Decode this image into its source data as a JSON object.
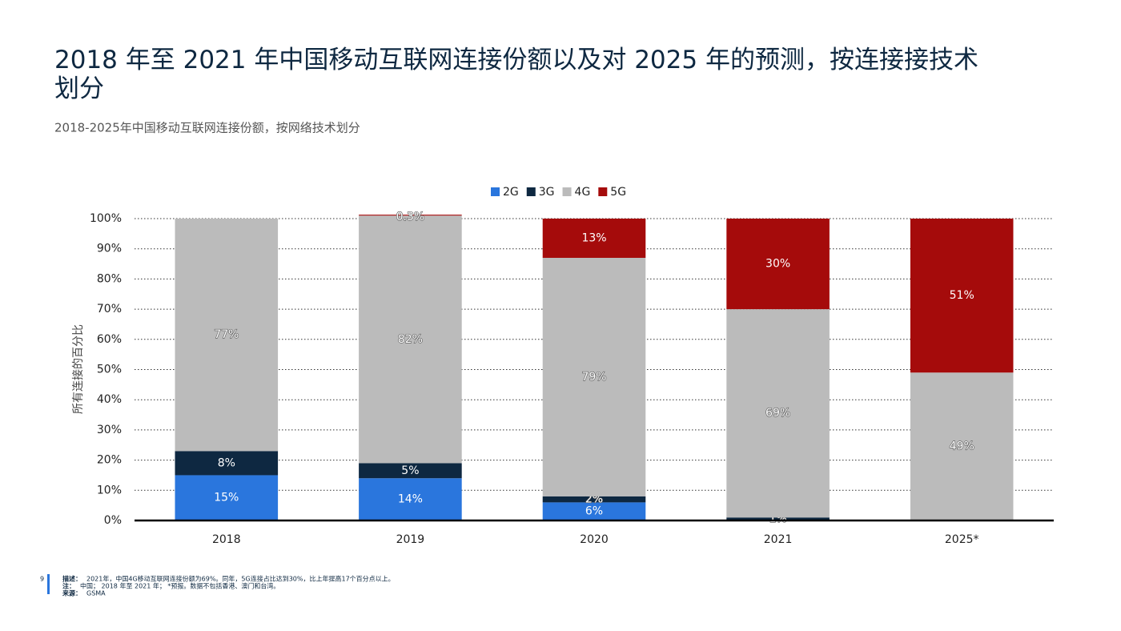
{
  "chart_data": {
    "type": "stacked_bar",
    "title": "2018 年至 2021 年中国移动互联网连接份额以及对 2025 年的预测，按连接接技术划分",
    "subtitle": "2018-2025年中国移动互联网连接份额，按网络技术划分",
    "y_label": "所有连接的百分比",
    "categories": [
      "2018",
      "2019",
      "2020",
      "2021",
      "2025*"
    ],
    "series": [
      {
        "name": "2G",
        "color": "#2a76dd",
        "values": [
          15,
          14,
          6,
          null,
          null
        ],
        "value_labels": [
          "15%",
          "14%",
          "6%",
          null,
          null
        ]
      },
      {
        "name": "3G",
        "color": "#0e2841",
        "values": [
          8,
          5,
          2,
          1,
          null
        ],
        "value_labels": [
          "8%",
          "5%",
          "2%",
          "1%",
          null
        ]
      },
      {
        "name": "4G",
        "color": "#bbbbbb",
        "values": [
          77,
          82,
          79,
          69,
          49
        ],
        "value_labels": [
          "77%",
          "82%",
          "79%",
          "69%",
          "49%"
        ]
      },
      {
        "name": "5G",
        "color": "#a50b0b",
        "values": [
          null,
          0.3,
          13,
          30,
          51
        ],
        "value_labels": [
          null,
          "0.3%",
          "13%",
          "30%",
          "51%"
        ]
      }
    ],
    "ylim": [
      0,
      100
    ],
    "yticks": [
      {
        "value": 0,
        "label": "0%"
      },
      {
        "value": 10,
        "label": "10%"
      },
      {
        "value": 20,
        "label": "20%"
      },
      {
        "value": 30,
        "label": "30%"
      },
      {
        "value": 40,
        "label": "40%"
      },
      {
        "value": 50,
        "label": "50%"
      },
      {
        "value": 60,
        "label": "60%"
      },
      {
        "value": 70,
        "label": "70%"
      },
      {
        "value": 80,
        "label": "80%"
      },
      {
        "value": 90,
        "label": "90%"
      },
      {
        "value": 100,
        "label": "100%"
      }
    ],
    "grid": true,
    "legend": "top"
  },
  "footer": {
    "page": "9",
    "notes": [
      {
        "key": "描述：",
        "text": "2021年，中国4G移动互联网连接份额为69%。同年，5G连接占比达到30%，比上年提高17个百分点以上。"
      },
      {
        "key": "注：",
        "text": "中国； 2018 年至 2021 年； *预报。数据不包括香港、澳门和台湾。"
      },
      {
        "key": "来源：",
        "text": "GSMA"
      }
    ]
  }
}
